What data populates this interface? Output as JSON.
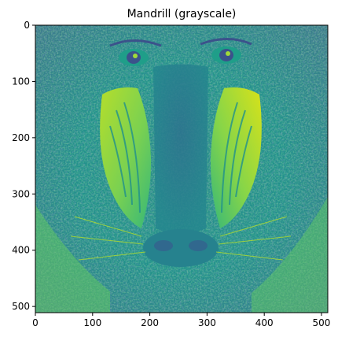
{
  "figure": {
    "title": "Mandrill (grayscale)",
    "image_subject": "mandrill face",
    "colormap": "viridis",
    "background_color": "#ffffff",
    "axis_color": "#000000",
    "palette": {
      "dark": "#3b528b",
      "mid": "#21918c",
      "light": "#5ec962",
      "bright": "#fde725"
    }
  },
  "chart_data": {
    "type": "heatmap",
    "title": "Mandrill (grayscale)",
    "xlabel": "",
    "ylabel": "",
    "xlim": [
      0,
      511
    ],
    "ylim": [
      511,
      0
    ],
    "x_ticks": [
      0,
      100,
      200,
      300,
      400,
      500
    ],
    "y_ticks": [
      0,
      100,
      200,
      300,
      400,
      500
    ],
    "grid": false,
    "legend": "none"
  }
}
